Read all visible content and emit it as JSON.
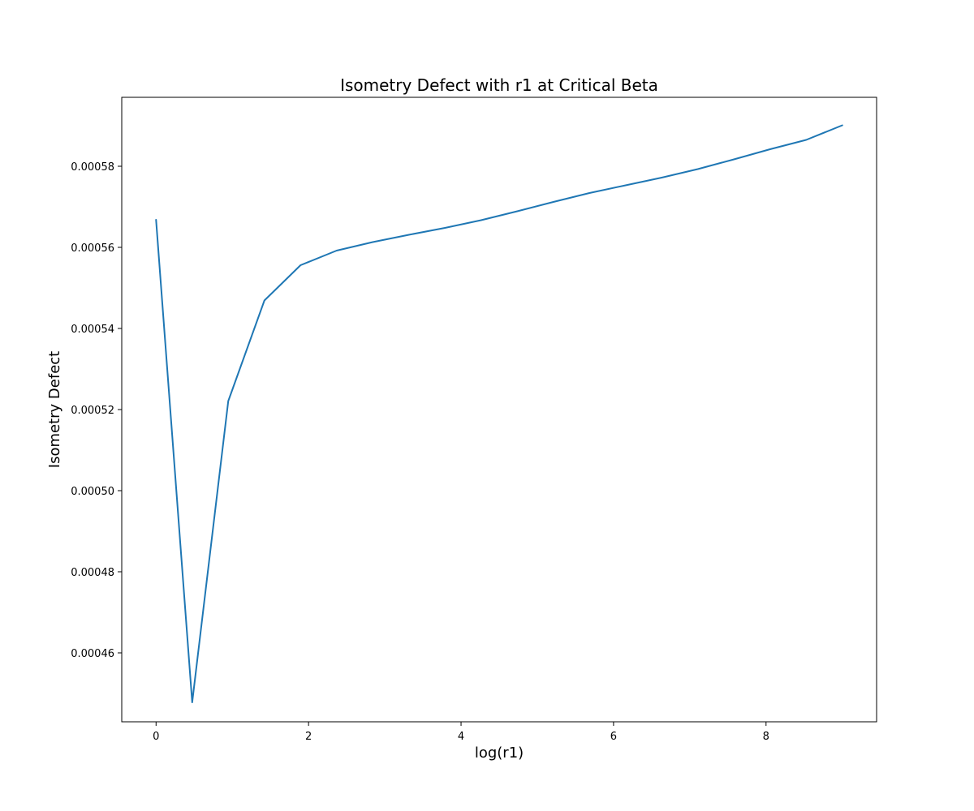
{
  "chart_data": {
    "type": "line",
    "title": "Isometry Defect with r1 at Critical Beta",
    "xlabel": "log(r1)",
    "ylabel": "Isometry Defect",
    "xlim": [
      -0.45,
      9.45
    ],
    "ylim": [
      0.000443,
      0.000597
    ],
    "xticks": [
      0,
      2,
      4,
      6,
      8
    ],
    "xtick_labels": [
      "0",
      "2",
      "4",
      "6",
      "8"
    ],
    "yticks": [
      0.00046,
      0.00048,
      0.0005,
      0.00052,
      0.00054,
      0.00056,
      0.00058
    ],
    "ytick_labels": [
      "0.00046",
      "0.00048",
      "0.00050",
      "0.00052",
      "0.00054",
      "0.00056",
      "0.00058"
    ],
    "grid": false,
    "series": [
      {
        "color": "#1f77b4",
        "x": [
          0,
          0.474,
          0.947,
          1.421,
          1.895,
          2.368,
          2.842,
          3.316,
          3.789,
          4.263,
          4.737,
          5.211,
          5.684,
          6.158,
          6.632,
          7.105,
          7.579,
          8.053,
          8.526,
          9.0
        ],
        "y": [
          0.0005668,
          0.0004478,
          0.0005221,
          0.0005469,
          0.0005556,
          0.0005592,
          0.0005613,
          0.0005631,
          0.0005648,
          0.0005667,
          0.0005689,
          0.0005712,
          0.0005734,
          0.0005753,
          0.0005772,
          0.0005793,
          0.0005817,
          0.0005842,
          0.0005865,
          0.0005901
        ]
      }
    ]
  }
}
